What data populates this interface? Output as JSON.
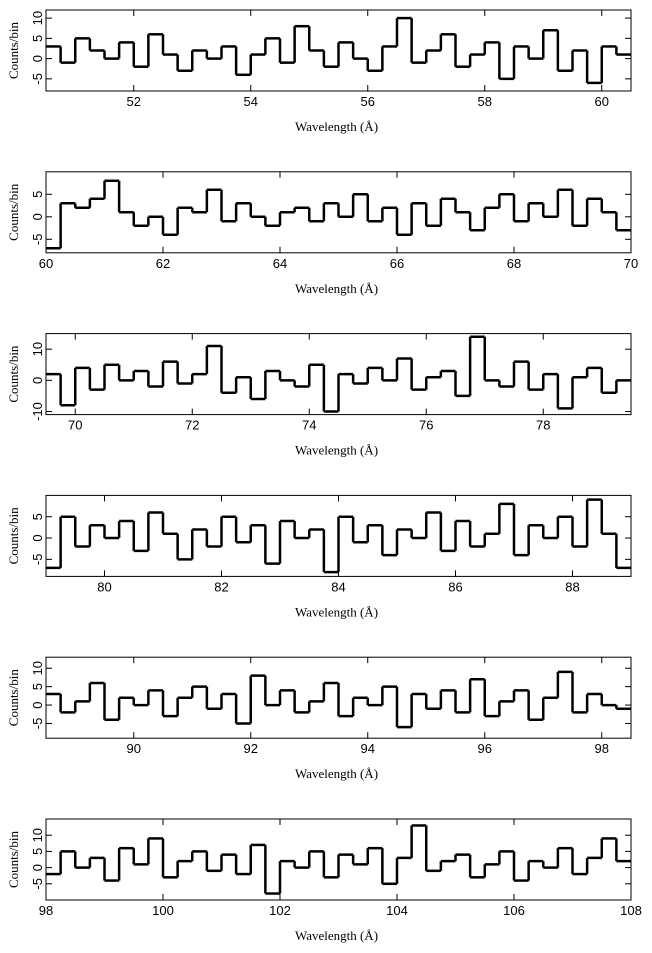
{
  "chart_data": [
    {
      "type": "histogram",
      "xlabel": "Wavelength (Å)",
      "ylabel": "Counts/bin",
      "color": "#000000",
      "bins": [
        50.5,
        50.75,
        51,
        51.25,
        51.5,
        51.75,
        52,
        52.25,
        52.5,
        52.75,
        53,
        53.25,
        53.5,
        53.75,
        54,
        54.25,
        54.5,
        54.75,
        55,
        55.25,
        55.5,
        55.75,
        56,
        56.25,
        56.5,
        56.75,
        57,
        57.25,
        57.5,
        57.75,
        58,
        58.25,
        58.5,
        58.75,
        59,
        59.25,
        59.5,
        59.75,
        60,
        60.25,
        60.5
      ],
      "values": [
        3,
        -1,
        5,
        2,
        0,
        4,
        -2,
        6,
        1,
        -3,
        2,
        0,
        3,
        -4,
        1,
        5,
        -1,
        8,
        2,
        -2,
        4,
        0,
        -3,
        3,
        10,
        -1,
        2,
        6,
        -2,
        1,
        4,
        -5,
        3,
        0,
        7,
        -3,
        2,
        -6,
        3,
        1
      ],
      "xlim": [
        50.5,
        60.5
      ],
      "xticks": [
        52,
        54,
        56,
        58,
        60
      ],
      "ylim": [
        -8,
        12
      ],
      "yticks": [
        -5,
        0,
        5,
        10
      ]
    },
    {
      "type": "histogram",
      "xlabel": "Wavelength (Å)",
      "ylabel": "Counts/bin",
      "color": "#000000",
      "bins": [
        60,
        60.25,
        60.5,
        60.75,
        61,
        61.25,
        61.5,
        61.75,
        62,
        62.25,
        62.5,
        62.75,
        63,
        63.25,
        63.5,
        63.75,
        64,
        64.25,
        64.5,
        64.75,
        65,
        65.25,
        65.5,
        65.75,
        66,
        66.25,
        66.5,
        66.75,
        67,
        67.25,
        67.5,
        67.75,
        68,
        68.25,
        68.5,
        68.75,
        69,
        69.25,
        69.5,
        69.75,
        70
      ],
      "values": [
        -7,
        3,
        2,
        4,
        8,
        1,
        -2,
        0,
        -4,
        2,
        1,
        6,
        -1,
        3,
        0,
        -2,
        1,
        2,
        -1,
        3,
        0,
        5,
        -1,
        2,
        -4,
        3,
        -2,
        4,
        1,
        -3,
        2,
        5,
        -1,
        3,
        0,
        6,
        -2,
        4,
        1,
        -3
      ],
      "xlim": [
        60,
        70
      ],
      "xticks": [
        60,
        62,
        64,
        66,
        68,
        70
      ],
      "ylim": [
        -8,
        10
      ],
      "yticks": [
        -5,
        0,
        5
      ]
    },
    {
      "type": "histogram",
      "xlabel": "Wavelength (Å)",
      "ylabel": "Counts/bin",
      "color": "#000000",
      "bins": [
        69.5,
        69.75,
        70,
        70.25,
        70.5,
        70.75,
        71,
        71.25,
        71.5,
        71.75,
        72,
        72.25,
        72.5,
        72.75,
        73,
        73.25,
        73.5,
        73.75,
        74,
        74.25,
        74.5,
        74.75,
        75,
        75.25,
        75.5,
        75.75,
        76,
        76.25,
        76.5,
        76.75,
        77,
        77.25,
        77.5,
        77.75,
        78,
        78.25,
        78.5,
        78.75,
        79,
        79.25,
        79.5
      ],
      "values": [
        2,
        -8,
        4,
        -3,
        5,
        0,
        3,
        -2,
        6,
        -1,
        2,
        11,
        -4,
        1,
        -6,
        3,
        0,
        -2,
        5,
        -10,
        2,
        -1,
        4,
        0,
        7,
        -3,
        1,
        3,
        -5,
        14,
        0,
        -2,
        6,
        -3,
        2,
        -9,
        1,
        4,
        -4,
        0
      ],
      "xlim": [
        69.5,
        79.5
      ],
      "xticks": [
        70,
        72,
        74,
        76,
        78
      ],
      "ylim": [
        -11,
        15
      ],
      "yticks": [
        -10,
        0,
        10
      ]
    },
    {
      "type": "histogram",
      "xlabel": "Wavelength (Å)",
      "ylabel": "Counts/bin",
      "color": "#000000",
      "bins": [
        79,
        79.25,
        79.5,
        79.75,
        80,
        80.25,
        80.5,
        80.75,
        81,
        81.25,
        81.5,
        81.75,
        82,
        82.25,
        82.5,
        82.75,
        83,
        83.25,
        83.5,
        83.75,
        84,
        84.25,
        84.5,
        84.75,
        85,
        85.25,
        85.5,
        85.75,
        86,
        86.25,
        86.5,
        86.75,
        87,
        87.25,
        87.5,
        87.75,
        88,
        88.25,
        88.5,
        88.75,
        89
      ],
      "values": [
        -7,
        5,
        -2,
        3,
        0,
        4,
        -3,
        6,
        1,
        -5,
        2,
        -2,
        5,
        -1,
        3,
        -6,
        4,
        0,
        2,
        -8,
        5,
        -1,
        3,
        -4,
        2,
        0,
        6,
        -3,
        4,
        -2,
        1,
        8,
        -4,
        3,
        0,
        5,
        -2,
        9,
        1,
        -7
      ],
      "xlim": [
        79,
        89
      ],
      "xticks": [
        80,
        82,
        84,
        86,
        88
      ],
      "ylim": [
        -9,
        10
      ],
      "yticks": [
        -5,
        0,
        5
      ]
    },
    {
      "type": "histogram",
      "xlabel": "Wavelength (Å)",
      "ylabel": "Counts/bin",
      "color": "#000000",
      "bins": [
        88.5,
        88.75,
        89,
        89.25,
        89.5,
        89.75,
        90,
        90.25,
        90.5,
        90.75,
        91,
        91.25,
        91.5,
        91.75,
        92,
        92.25,
        92.5,
        92.75,
        93,
        93.25,
        93.5,
        93.75,
        94,
        94.25,
        94.5,
        94.75,
        95,
        95.25,
        95.5,
        95.75,
        96,
        96.25,
        96.5,
        96.75,
        97,
        97.25,
        97.5,
        97.75,
        98,
        98.25,
        98.5
      ],
      "values": [
        3,
        -2,
        1,
        6,
        -4,
        2,
        0,
        4,
        -3,
        2,
        5,
        -1,
        3,
        -5,
        8,
        0,
        4,
        -2,
        1,
        6,
        -3,
        2,
        0,
        5,
        -6,
        3,
        -1,
        4,
        -2,
        7,
        -3,
        1,
        4,
        -4,
        2,
        9,
        -2,
        3,
        0,
        -1
      ],
      "xlim": [
        88.5,
        98.5
      ],
      "xticks": [
        90,
        92,
        94,
        96,
        98
      ],
      "ylim": [
        -9,
        13
      ],
      "yticks": [
        -5,
        0,
        5,
        10
      ]
    },
    {
      "type": "histogram",
      "xlabel": "Wavelength (Å)",
      "ylabel": "Counts/bin",
      "color": "#000000",
      "bins": [
        98,
        98.25,
        98.5,
        98.75,
        99,
        99.25,
        99.5,
        99.75,
        100,
        100.25,
        100.5,
        100.75,
        101,
        101.25,
        101.5,
        101.75,
        102,
        102.25,
        102.5,
        102.75,
        103,
        103.25,
        103.5,
        103.75,
        104,
        104.25,
        104.5,
        104.75,
        105,
        105.25,
        105.5,
        105.75,
        106,
        106.25,
        106.5,
        106.75,
        107,
        107.25,
        107.5,
        107.75,
        108
      ],
      "values": [
        -2,
        5,
        0,
        3,
        -4,
        6,
        1,
        9,
        -3,
        2,
        5,
        -1,
        4,
        -2,
        7,
        -8,
        2,
        0,
        5,
        -3,
        4,
        1,
        6,
        -5,
        3,
        13,
        -1,
        2,
        4,
        -3,
        1,
        5,
        -4,
        2,
        0,
        6,
        -2,
        3,
        9,
        2
      ],
      "xlim": [
        98,
        108
      ],
      "xticks": [
        98,
        100,
        102,
        104,
        106,
        108
      ],
      "ylim": [
        -10,
        15
      ],
      "yticks": [
        -5,
        0,
        5,
        10
      ]
    }
  ]
}
